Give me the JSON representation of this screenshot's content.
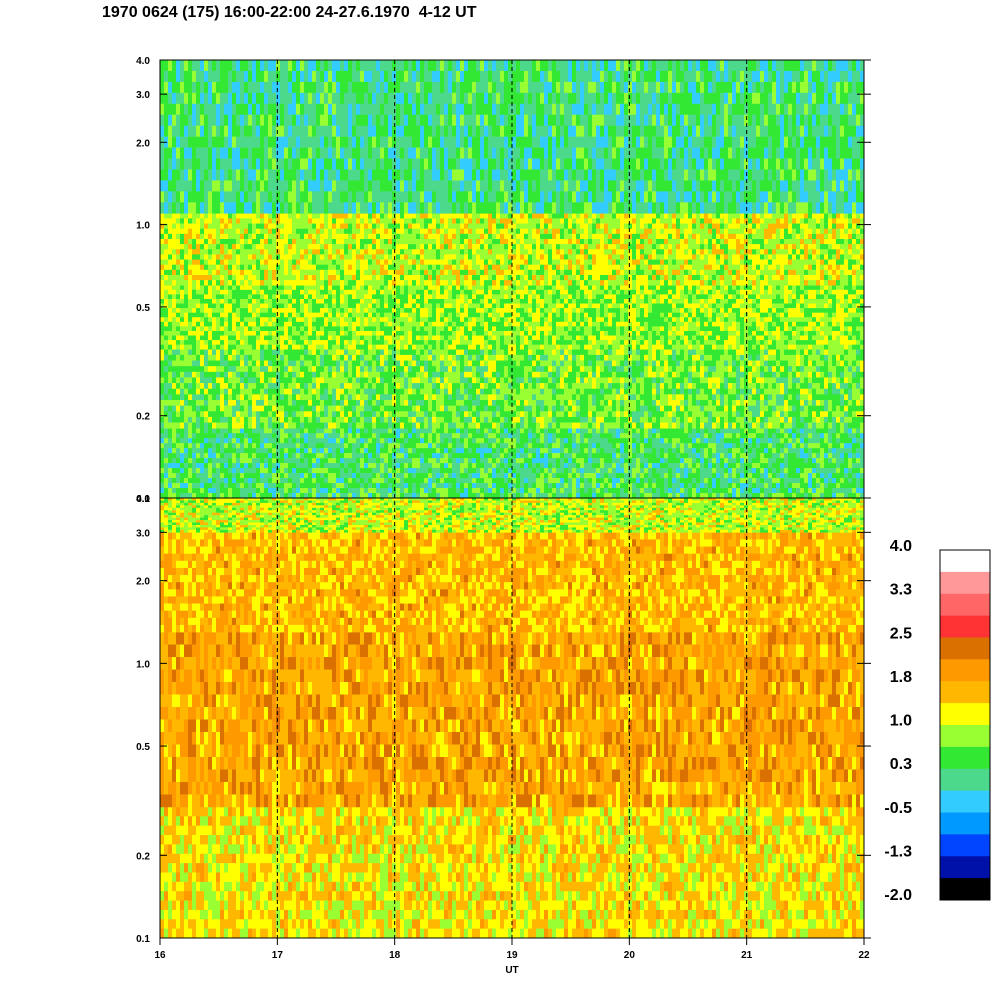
{
  "title": "1970 0624 (175) 16:00-22:00 24-27.6.1970  4-12 UT",
  "chart_data": [
    {
      "type": "heatmap",
      "panel": "upper",
      "x": [
        16,
        17,
        18,
        19,
        20,
        21,
        22
      ],
      "xlim": [
        16,
        22
      ],
      "ylim": [
        0.1,
        4.0
      ],
      "yscale": "log",
      "yticks": [
        "0.1",
        "0.2",
        "0.5",
        "1.0",
        "2.0",
        "3.0",
        "4.0"
      ],
      "ytick_values": [
        0.1,
        0.2,
        0.5,
        1.0,
        2.0,
        3.0,
        4.0
      ],
      "dashed_lines_at": [
        17,
        18,
        19,
        20,
        21
      ],
      "dominant_levels": [
        {
          "y_range": [
            0.1,
            0.18
          ],
          "level": 0.3
        },
        {
          "y_range": [
            0.18,
            0.35
          ],
          "level": 0.6
        },
        {
          "y_range": [
            0.35,
            0.6
          ],
          "level": 0.8
        },
        {
          "y_range": [
            0.6,
            1.1
          ],
          "level": 1.0
        },
        {
          "y_range": [
            1.1,
            4.0
          ],
          "level": 0.2
        }
      ]
    },
    {
      "type": "heatmap",
      "panel": "lower",
      "x": [
        16,
        17,
        18,
        19,
        20,
        21,
        22
      ],
      "xlim": [
        16,
        22
      ],
      "xlabel": "UT",
      "ylim": [
        0.1,
        4.0
      ],
      "yscale": "log",
      "yticks": [
        "0.1",
        "0.2",
        "0.5",
        "1.0",
        "2.0",
        "3.0",
        "4.0"
      ],
      "ytick_values": [
        0.1,
        0.2,
        0.5,
        1.0,
        2.0,
        3.0,
        4.0
      ],
      "xticks": [
        "16",
        "17",
        "18",
        "19",
        "20",
        "21",
        "22"
      ],
      "dashed_lines_at": [
        17,
        18,
        19,
        20,
        21
      ],
      "dominant_levels": [
        {
          "y_range": [
            0.1,
            0.3
          ],
          "level": 1.3
        },
        {
          "y_range": [
            0.3,
            1.3
          ],
          "level": 1.8
        },
        {
          "y_range": [
            1.3,
            3.0
          ],
          "level": 1.6
        },
        {
          "y_range": [
            3.0,
            4.0
          ],
          "level": 1.0
        }
      ]
    }
  ],
  "colorbar": {
    "labels": [
      "4.0",
      "3.3",
      "2.5",
      "1.8",
      "1.0",
      "0.3",
      "-0.5",
      "-1.3",
      "-2.0"
    ],
    "colors": [
      "#ffffff",
      "#ff9999",
      "#ff6666",
      "#ff3333",
      "#d97000",
      "#ff9900",
      "#ffb700",
      "#ffff00",
      "#99ff33",
      "#33e833",
      "#4dd98c",
      "#33ccff",
      "#0099ff",
      "#0044ff",
      "#0011aa",
      "#000000"
    ]
  }
}
